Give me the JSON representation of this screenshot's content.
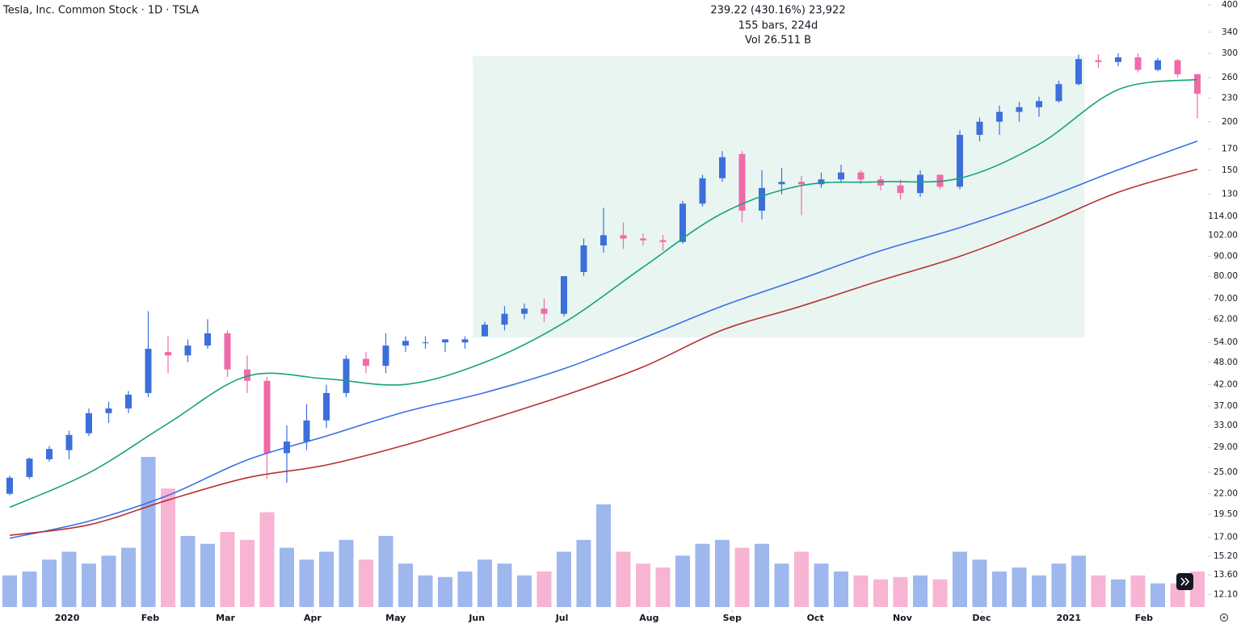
{
  "chart_data": {
    "type": "candlestick",
    "title": "Tesla, Inc. Common Stock · 1D · TSLA",
    "annotations": [
      "239.22 (430.16%) 23,922",
      "155 bars, 224d",
      "Vol 26.511 B"
    ],
    "log_y": true,
    "up_color": "#3d6fdb",
    "down_color": "#f06aa8",
    "open": [
      22,
      24.3,
      27,
      28.5,
      31.5,
      35.5,
      36.5,
      40,
      51,
      50,
      53,
      57,
      46,
      43,
      28,
      30,
      34,
      40,
      49,
      47,
      53,
      54,
      54,
      54,
      56,
      60,
      64,
      66,
      64,
      82,
      96,
      102,
      100,
      99,
      98,
      123,
      143,
      165,
      118,
      138,
      140,
      138,
      142,
      148,
      142,
      137,
      131,
      146,
      136,
      185,
      200,
      212,
      218,
      226,
      250,
      288,
      285,
      293,
      272,
      288,
      265
    ],
    "high": [
      24.5,
      27.3,
      29.2,
      32,
      36.5,
      38,
      40.5,
      65,
      56,
      55,
      62,
      58,
      50,
      44,
      33,
      37.5,
      42,
      50,
      51,
      57,
      56,
      56,
      55,
      56,
      61,
      67,
      68,
      70,
      80,
      100,
      120,
      110,
      103,
      102,
      125,
      146,
      168,
      168,
      150,
      152,
      145,
      148,
      155,
      150,
      145,
      142,
      150,
      146,
      190,
      205,
      220,
      225,
      232,
      255,
      298,
      298,
      300,
      300,
      292,
      290,
      266
    ],
    "low": [
      21.8,
      24,
      26.6,
      27,
      31,
      33.5,
      35.5,
      39,
      45,
      48,
      52,
      44,
      40,
      24,
      23.5,
      28.5,
      32.5,
      39,
      45,
      45,
      51,
      52,
      51,
      52,
      56,
      58,
      62,
      61,
      63,
      80,
      92,
      94,
      96,
      93,
      97,
      121,
      140,
      110,
      112,
      130,
      115,
      135,
      140,
      138,
      133,
      126,
      128,
      134,
      134,
      178,
      185,
      200,
      206,
      224,
      248,
      275,
      278,
      268,
      270,
      260,
      204
    ],
    "close": [
      24.2,
      27.1,
      28.7,
      31.2,
      35.5,
      36.5,
      39.6,
      52,
      50,
      53,
      57,
      46,
      43,
      28,
      30,
      34,
      40,
      49,
      47,
      53,
      54.5,
      54,
      55,
      55,
      60,
      64,
      66,
      64,
      80,
      96,
      102,
      100,
      99,
      98,
      123,
      143,
      162,
      118,
      135,
      140,
      138,
      142,
      148,
      142,
      137,
      131,
      146,
      136,
      185,
      200,
      212,
      218,
      226,
      250,
      290,
      285,
      293,
      272,
      288,
      265,
      236
    ],
    "volume": [
      40,
      45,
      60,
      70,
      55,
      65,
      75,
      190,
      150,
      90,
      80,
      95,
      85,
      120,
      75,
      60,
      70,
      85,
      60,
      90,
      55,
      40,
      38,
      45,
      60,
      55,
      40,
      45,
      70,
      85,
      130,
      70,
      55,
      50,
      65,
      80,
      85,
      75,
      80,
      55,
      70,
      55,
      45,
      40,
      35,
      38,
      40,
      35,
      70,
      60,
      45,
      50,
      40,
      55,
      65,
      40,
      35,
      40,
      30,
      30,
      45
    ],
    "moving_averages": {
      "x": [
        0,
        4,
        8,
        12,
        16,
        20,
        24,
        28,
        32,
        36,
        40,
        44,
        48,
        52,
        56,
        60
      ],
      "series": [
        {
          "color": "#16a37a",
          "values": [
            20.3,
            24.9,
            33.4,
            44.2,
            43.5,
            42.1,
            48,
            60.7,
            84.4,
            116.2,
            137,
            140,
            143,
            175,
            242,
            257
          ]
        },
        {
          "color": "#3b6ee8",
          "values": [
            16.9,
            18.7,
            21.8,
            26.9,
            31.0,
            35.8,
            40.1,
            46.2,
            55.4,
            67.0,
            78.8,
            93.0,
            106.7,
            125.4,
            150.3,
            178.3
          ]
        },
        {
          "color": "#b8312f",
          "values": [
            17.2,
            18.3,
            21.2,
            24.2,
            26.1,
            29.4,
            33.9,
            39.4,
            46.7,
            58.1,
            67.0,
            78.0,
            90.0,
            107.7,
            131.6,
            151.0
          ]
        }
      ]
    },
    "range_box": {
      "x": [
        23.4,
        54.3
      ],
      "y": [
        55.61,
        294.83
      ],
      "color": "#e8f5f1"
    },
    "ylim": [
      11.4,
      411.7
    ],
    "yticks": [
      400,
      340,
      300,
      260,
      230,
      200,
      170,
      150,
      130,
      {
        "value": 114,
        "label": "114.00"
      },
      {
        "value": 102,
        "label": "102.00"
      },
      {
        "value": 90,
        "label": "90.00"
      },
      {
        "value": 80,
        "label": "80.00"
      },
      {
        "value": 70,
        "label": "70.00"
      },
      {
        "value": 62,
        "label": "62.00"
      },
      {
        "value": 54,
        "label": "54.00"
      },
      {
        "value": 48,
        "label": "48.00"
      },
      {
        "value": 42,
        "label": "42.00"
      },
      {
        "value": 37,
        "label": "37.00"
      },
      {
        "value": 33,
        "label": "33.00"
      },
      {
        "value": 29,
        "label": "29.00"
      },
      {
        "value": 25,
        "label": "25.00"
      },
      {
        "value": 22,
        "label": "22.00"
      },
      {
        "value": 19.5,
        "label": "19.50"
      },
      {
        "value": 17,
        "label": "17.00"
      },
      {
        "value": 15.2,
        "label": "15.20"
      },
      {
        "value": 13.6,
        "label": "13.60"
      },
      {
        "value": 12.1,
        "label": "12.10"
      }
    ],
    "xticks": [
      {
        "value": 2.9,
        "label": "2020"
      },
      {
        "value": 7.1,
        "label": "Feb"
      },
      {
        "value": 10.9,
        "label": "Mar"
      },
      {
        "value": 15.3,
        "label": "Apr"
      },
      {
        "value": 19.5,
        "label": "May"
      },
      {
        "value": 23.6,
        "label": "Jun"
      },
      {
        "value": 27.9,
        "label": "Jul"
      },
      {
        "value": 32.3,
        "label": "Aug"
      },
      {
        "value": 36.5,
        "label": "Sep"
      },
      {
        "value": 40.7,
        "label": "Oct"
      },
      {
        "value": 45.1,
        "label": "Nov"
      },
      {
        "value": 49.1,
        "label": "Dec"
      },
      {
        "value": 53.5,
        "label": "2021"
      },
      {
        "value": 57.3,
        "label": "Feb"
      }
    ]
  }
}
